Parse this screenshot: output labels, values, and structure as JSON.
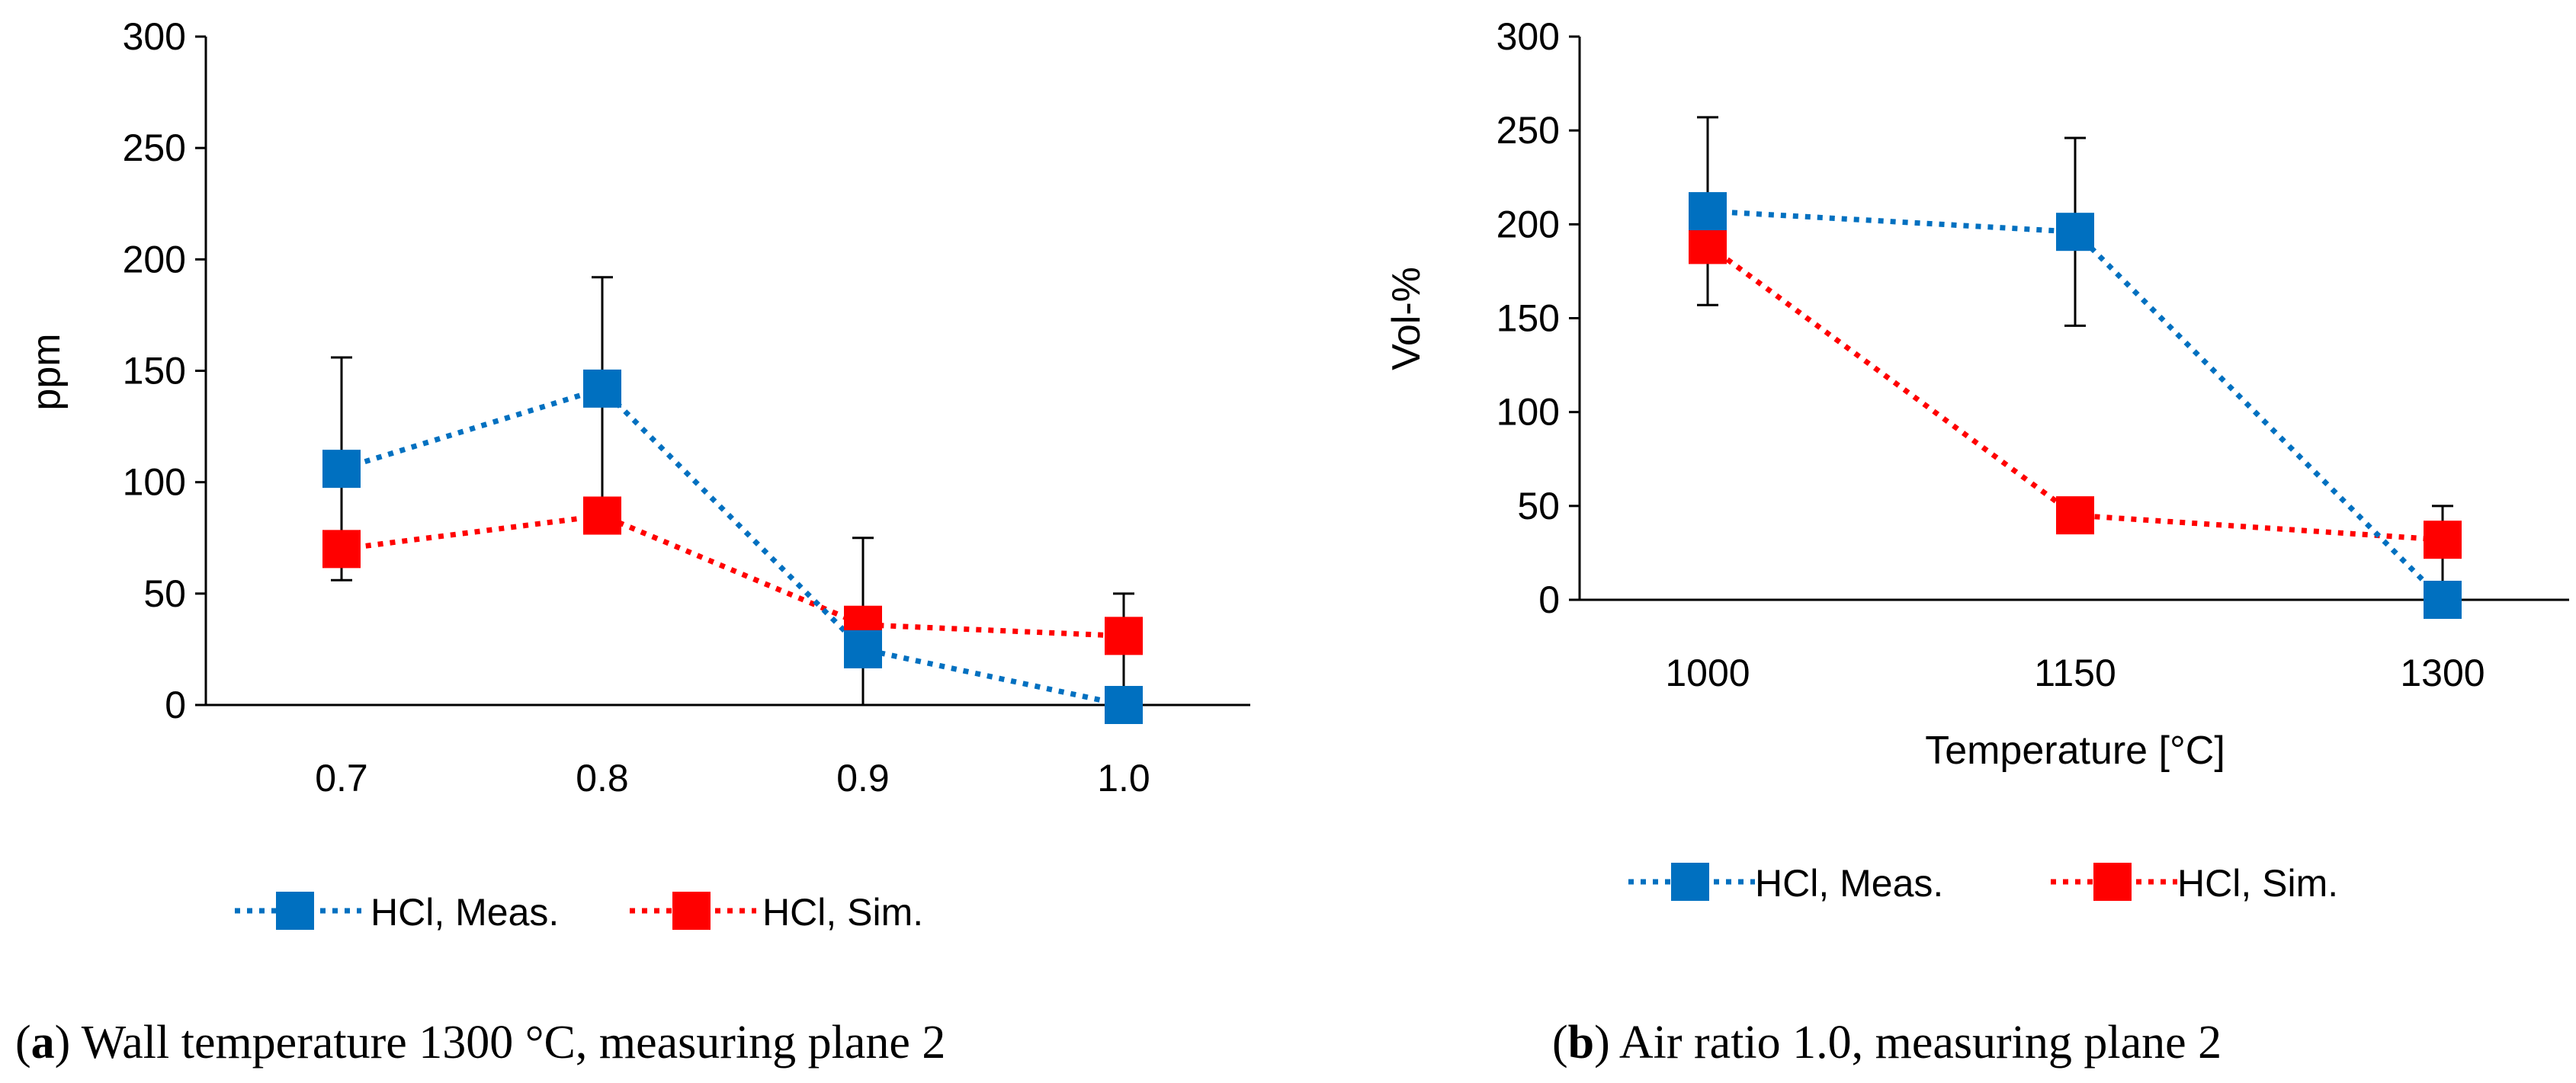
{
  "colors": {
    "measured": "#0070C0",
    "simulated": "#FF0000",
    "axis": "#000000",
    "errorbar": "#000000"
  },
  "chart_data": [
    {
      "id": "a",
      "type": "line",
      "xlabel": "",
      "ylabel": "ppm",
      "ylim": [
        0,
        300
      ],
      "yticks": [
        0,
        50,
        100,
        150,
        200,
        250,
        300
      ],
      "categories": [
        "0.7",
        "0.8",
        "0.9",
        "1.0"
      ],
      "grid": false,
      "legend_position": "bottom",
      "series": [
        {
          "name": "HCl, Meas.",
          "color_key": "measured",
          "values": [
            106,
            142,
            25,
            0
          ],
          "error_plus": [
            50,
            50,
            50,
            50
          ],
          "error_minus": [
            50,
            50,
            50,
            50
          ]
        },
        {
          "name": "HCl, Sim.",
          "color_key": "simulated",
          "values": [
            70,
            85,
            36,
            31
          ]
        }
      ],
      "caption": {
        "label": "a",
        "text": " Wall temperature 1300 °C, measuring plane 2"
      }
    },
    {
      "id": "b",
      "type": "line",
      "xlabel": "Temperature [°C]",
      "ylabel": "Vol-%",
      "ylim": [
        0,
        300
      ],
      "yticks": [
        0,
        50,
        100,
        150,
        200,
        250,
        300
      ],
      "categories": [
        "1000",
        "1150",
        "1300"
      ],
      "grid": false,
      "legend_position": "bottom",
      "series": [
        {
          "name": "HCl, Meas.",
          "color_key": "measured",
          "values": [
            207,
            196,
            0
          ],
          "error_plus": [
            50,
            50,
            50
          ],
          "error_minus": [
            50,
            50,
            50
          ]
        },
        {
          "name": "HCl, Sim.",
          "color_key": "simulated",
          "values": [
            189,
            45,
            32
          ]
        }
      ],
      "caption": {
        "label": "b",
        "text": " Air ratio 1.0, measuring plane 2"
      }
    }
  ]
}
